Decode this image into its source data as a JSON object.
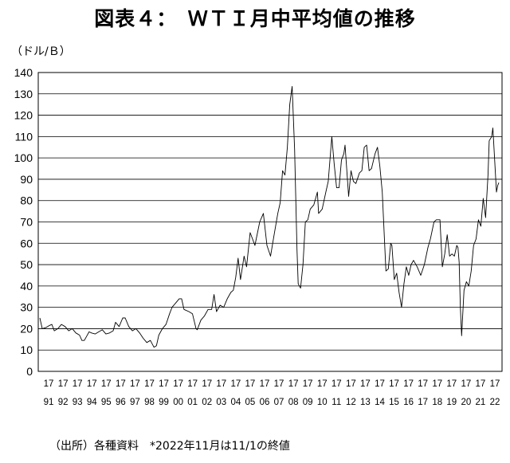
{
  "title": "図表４：　ＷＴＩ月中平均値の推移",
  "unit_label": "（ドル/Ｂ）",
  "source_note": "（出所）各種資料　*2022年11月は11/1の終値",
  "chart_data": {
    "type": "line",
    "title": "図表４：　ＷＴＩ月中平均値の推移",
    "ylabel": "（ドル/Ｂ）",
    "xlabel": "",
    "ylim": [
      0,
      140
    ],
    "yticks": [
      0,
      10,
      20,
      30,
      40,
      50,
      60,
      70,
      80,
      90,
      100,
      110,
      120,
      130,
      140
    ],
    "xtick_top": "17",
    "xtick_years": [
      "91",
      "92",
      "93",
      "94",
      "95",
      "96",
      "97",
      "98",
      "99",
      "00",
      "01",
      "02",
      "03",
      "04",
      "05",
      "06",
      "07",
      "08",
      "09",
      "10",
      "11",
      "12",
      "13",
      "14",
      "15",
      "16",
      "17",
      "18",
      "19",
      "20",
      "21",
      "22"
    ],
    "grid": true,
    "legend": "none",
    "x_start": "1991-01",
    "x_end": "2022-11",
    "series": [
      {
        "color": "#000000",
        "points": [
          [
            "1991-01",
            25
          ],
          [
            "1991-03",
            20
          ],
          [
            "1991-06",
            20.5
          ],
          [
            "1991-09",
            21.5
          ],
          [
            "1991-11",
            22
          ],
          [
            "1992-01",
            19
          ],
          [
            "1992-04",
            20
          ],
          [
            "1992-07",
            22
          ],
          [
            "1992-10",
            21
          ],
          [
            "1993-01",
            19
          ],
          [
            "1993-04",
            20
          ],
          [
            "1993-07",
            18
          ],
          [
            "1993-10",
            17
          ],
          [
            "1993-12",
            14.5
          ],
          [
            "1994-02",
            14.5
          ],
          [
            "1994-04",
            16.5
          ],
          [
            "1994-06",
            18.5
          ],
          [
            "1994-08",
            18
          ],
          [
            "1994-11",
            17.5
          ],
          [
            "1995-02",
            18.5
          ],
          [
            "1995-05",
            19.5
          ],
          [
            "1995-08",
            17.5
          ],
          [
            "1995-11",
            18
          ],
          [
            "1996-02",
            19
          ],
          [
            "1996-04",
            23
          ],
          [
            "1996-07",
            21
          ],
          [
            "1996-10",
            25
          ],
          [
            "1996-12",
            25
          ],
          [
            "1997-03",
            21
          ],
          [
            "1997-06",
            19
          ],
          [
            "1997-09",
            20
          ],
          [
            "1997-12",
            18
          ],
          [
            "1998-03",
            15.5
          ],
          [
            "1998-06",
            13.5
          ],
          [
            "1998-09",
            14.5
          ],
          [
            "1998-12",
            11.3
          ],
          [
            "1999-02",
            12
          ],
          [
            "1999-04",
            17
          ],
          [
            "1999-07",
            20
          ],
          [
            "1999-10",
            22
          ],
          [
            "2000-01",
            27
          ],
          [
            "2000-03",
            30
          ],
          [
            "2000-06",
            32
          ],
          [
            "2000-09",
            34
          ],
          [
            "2000-11",
            34
          ],
          [
            "2001-01",
            29
          ],
          [
            "2001-05",
            28
          ],
          [
            "2001-08",
            27
          ],
          [
            "2001-11",
            20
          ],
          [
            "2001-12",
            19.5
          ],
          [
            "2002-03",
            24
          ],
          [
            "2002-06",
            26
          ],
          [
            "2002-09",
            29
          ],
          [
            "2002-12",
            29
          ],
          [
            "2003-02",
            36
          ],
          [
            "2003-04",
            28
          ],
          [
            "2003-07",
            31
          ],
          [
            "2003-10",
            30
          ],
          [
            "2004-01",
            34
          ],
          [
            "2004-04",
            37
          ],
          [
            "2004-06",
            38
          ],
          [
            "2004-08",
            44
          ],
          [
            "2004-10",
            53
          ],
          [
            "2004-12",
            43
          ],
          [
            "2005-03",
            54
          ],
          [
            "2005-05",
            49
          ],
          [
            "2005-08",
            65
          ],
          [
            "2005-10",
            62
          ],
          [
            "2005-12",
            59
          ],
          [
            "2006-04",
            70
          ],
          [
            "2006-07",
            74
          ],
          [
            "2006-10",
            59
          ],
          [
            "2007-01",
            54
          ],
          [
            "2007-04",
            64
          ],
          [
            "2007-07",
            74
          ],
          [
            "2007-09",
            79
          ],
          [
            "2007-11",
            94
          ],
          [
            "2008-01",
            92
          ],
          [
            "2008-03",
            105
          ],
          [
            "2008-05",
            125
          ],
          [
            "2008-07",
            133.5
          ],
          [
            "2008-09",
            104
          ],
          [
            "2008-11",
            57
          ],
          [
            "2008-12",
            41
          ],
          [
            "2009-02",
            39
          ],
          [
            "2009-04",
            50
          ],
          [
            "2009-06",
            70
          ],
          [
            "2009-08",
            71
          ],
          [
            "2009-10",
            76
          ],
          [
            "2010-01",
            78
          ],
          [
            "2010-04",
            84
          ],
          [
            "2010-05",
            74
          ],
          [
            "2010-08",
            76
          ],
          [
            "2010-11",
            84
          ],
          [
            "2011-01",
            89
          ],
          [
            "2011-03",
            103
          ],
          [
            "2011-04",
            110
          ],
          [
            "2011-06",
            97
          ],
          [
            "2011-08",
            86
          ],
          [
            "2011-10",
            86
          ],
          [
            "2011-12",
            99
          ],
          [
            "2012-02",
            102
          ],
          [
            "2012-03",
            106
          ],
          [
            "2012-06",
            82
          ],
          [
            "2012-08",
            94
          ],
          [
            "2012-10",
            89
          ],
          [
            "2012-12",
            88
          ],
          [
            "2013-03",
            93
          ],
          [
            "2013-05",
            94
          ],
          [
            "2013-07",
            105
          ],
          [
            "2013-09",
            106
          ],
          [
            "2013-11",
            94
          ],
          [
            "2014-01",
            95
          ],
          [
            "2014-04",
            102
          ],
          [
            "2014-06",
            105
          ],
          [
            "2014-08",
            96
          ],
          [
            "2014-10",
            84
          ],
          [
            "2014-12",
            59
          ],
          [
            "2015-01",
            47
          ],
          [
            "2015-03",
            48
          ],
          [
            "2015-05",
            60
          ],
          [
            "2015-06",
            59
          ],
          [
            "2015-08",
            43
          ],
          [
            "2015-10",
            46
          ],
          [
            "2015-12",
            37
          ],
          [
            "2016-02",
            30
          ],
          [
            "2016-04",
            41
          ],
          [
            "2016-06",
            49
          ],
          [
            "2016-08",
            45
          ],
          [
            "2016-10",
            50
          ],
          [
            "2016-12",
            52
          ],
          [
            "2017-03",
            49
          ],
          [
            "2017-06",
            45
          ],
          [
            "2017-09",
            50
          ],
          [
            "2017-12",
            58
          ],
          [
            "2018-02",
            62
          ],
          [
            "2018-05",
            70
          ],
          [
            "2018-07",
            71
          ],
          [
            "2018-10",
            71
          ],
          [
            "2018-12",
            49
          ],
          [
            "2019-02",
            55
          ],
          [
            "2019-04",
            64
          ],
          [
            "2019-06",
            54
          ],
          [
            "2019-08",
            55
          ],
          [
            "2019-10",
            54
          ],
          [
            "2019-12",
            59
          ],
          [
            "2020-01",
            58
          ],
          [
            "2020-02",
            51
          ],
          [
            "2020-03",
            30
          ],
          [
            "2020-04",
            16.7
          ],
          [
            "2020-06",
            38
          ],
          [
            "2020-08",
            42
          ],
          [
            "2020-10",
            40
          ],
          [
            "2020-12",
            47
          ],
          [
            "2021-02",
            59
          ],
          [
            "2021-04",
            62
          ],
          [
            "2021-06",
            71
          ],
          [
            "2021-08",
            68
          ],
          [
            "2021-10",
            81
          ],
          [
            "2021-12",
            72
          ],
          [
            "2022-02",
            92
          ],
          [
            "2022-03",
            108
          ],
          [
            "2022-05",
            110
          ],
          [
            "2022-06",
            114
          ],
          [
            "2022-08",
            94
          ],
          [
            "2022-09",
            84
          ],
          [
            "2022-10",
            87
          ],
          [
            "2022-11",
            88.4
          ]
        ]
      }
    ]
  }
}
